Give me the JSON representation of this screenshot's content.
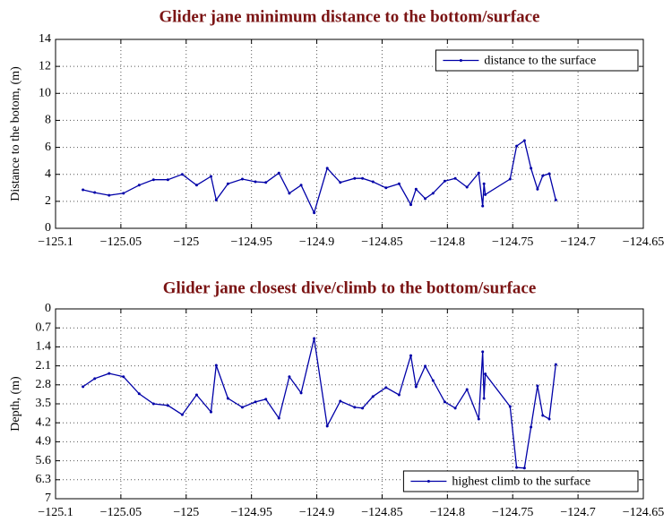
{
  "chart_data": [
    {
      "type": "line",
      "title": "Glider jane minimum distance to the bottom/surface",
      "y_label": "Distance to the botom, (m)",
      "x": [
        -125.079,
        -125.07,
        -125.059,
        -125.048,
        -125.036,
        -125.025,
        -125.014,
        -125.003,
        -124.992,
        -124.981,
        -124.977,
        -124.968,
        -124.957,
        -124.947,
        -124.939,
        -124.929,
        -124.921,
        -124.912,
        -124.902,
        -124.892,
        -124.882,
        -124.871,
        -124.865,
        -124.857,
        -124.847,
        -124.837,
        -124.828,
        -124.824,
        -124.817,
        -124.811,
        -124.802,
        -124.794,
        -124.785,
        -124.776,
        -124.773,
        -124.772,
        -124.771,
        -124.752,
        -124.747,
        -124.741,
        -124.736,
        -124.731,
        -124.727,
        -124.722,
        -124.717
      ],
      "series": [
        {
          "name": "distance to the surface",
          "color": "#0000a8",
          "values": [
            2.85,
            2.65,
            2.45,
            2.6,
            3.2,
            3.6,
            3.6,
            4.0,
            3.2,
            3.85,
            2.1,
            3.3,
            3.65,
            3.45,
            3.4,
            4.1,
            2.6,
            3.2,
            1.15,
            4.45,
            3.4,
            3.7,
            3.7,
            3.45,
            3.0,
            3.3,
            1.75,
            2.9,
            2.2,
            2.6,
            3.5,
            3.7,
            3.05,
            4.1,
            1.65,
            3.3,
            2.5,
            3.65,
            6.1,
            6.5,
            4.45,
            2.9,
            3.9,
            4.05,
            2.1
          ]
        }
      ],
      "xlim": [
        -125.1,
        -124.65
      ],
      "xticks": [
        {
          "value": -125.1,
          "label": "−125.1"
        },
        {
          "value": -125.05,
          "label": "−125.05"
        },
        {
          "value": -125,
          "label": "−125"
        },
        {
          "value": -124.95,
          "label": "−124.95"
        },
        {
          "value": -124.9,
          "label": "−124.9"
        },
        {
          "value": -124.85,
          "label": "−124.85"
        },
        {
          "value": -124.8,
          "label": "−124.8"
        },
        {
          "value": -124.75,
          "label": "−124.75"
        },
        {
          "value": -124.7,
          "label": "−124.7"
        },
        {
          "value": -124.65,
          "label": "−124.65"
        }
      ],
      "ylim": [
        0,
        14
      ],
      "yticks": [
        0,
        2,
        4,
        6,
        8,
        10,
        12,
        14
      ],
      "grid": true,
      "legend": "upper right"
    },
    {
      "type": "line",
      "title": "Glider jane closest dive/climb to the bottom/surface",
      "y_label": "Depth, (m)",
      "x": [
        -125.079,
        -125.07,
        -125.059,
        -125.048,
        -125.036,
        -125.025,
        -125.014,
        -125.003,
        -124.992,
        -124.981,
        -124.977,
        -124.968,
        -124.957,
        -124.947,
        -124.939,
        -124.929,
        -124.921,
        -124.912,
        -124.902,
        -124.892,
        -124.882,
        -124.871,
        -124.865,
        -124.857,
        -124.847,
        -124.837,
        -124.828,
        -124.824,
        -124.817,
        -124.811,
        -124.802,
        -124.794,
        -124.785,
        -124.776,
        -124.773,
        -124.772,
        -124.771,
        -124.752,
        -124.747,
        -124.741,
        -124.736,
        -124.731,
        -124.727,
        -124.722,
        -124.717
      ],
      "series": [
        {
          "name": "highest climb to the surface",
          "color": "#0000a8",
          "values": [
            2.87,
            2.57,
            2.38,
            2.5,
            3.13,
            3.5,
            3.56,
            3.9,
            3.17,
            3.8,
            2.08,
            3.3,
            3.63,
            3.43,
            3.33,
            4.03,
            2.5,
            3.1,
            1.09,
            4.32,
            3.4,
            3.63,
            3.66,
            3.23,
            2.9,
            3.17,
            1.72,
            2.87,
            2.11,
            2.64,
            3.43,
            3.66,
            2.97,
            4.06,
            1.58,
            3.3,
            2.4,
            3.6,
            5.85,
            5.87,
            4.36,
            2.84,
            3.93,
            4.06,
            2.05
          ]
        }
      ],
      "xlim": [
        -125.1,
        -124.65
      ],
      "xticks": [
        {
          "value": -125.1,
          "label": "−125.1"
        },
        {
          "value": -125.05,
          "label": "−125.05"
        },
        {
          "value": -125,
          "label": "−125"
        },
        {
          "value": -124.95,
          "label": "−124.95"
        },
        {
          "value": -124.9,
          "label": "−124.9"
        },
        {
          "value": -124.85,
          "label": "−124.85"
        },
        {
          "value": -124.8,
          "label": "−124.8"
        },
        {
          "value": -124.75,
          "label": "−124.75"
        },
        {
          "value": -124.7,
          "label": "−124.7"
        },
        {
          "value": -124.65,
          "label": "−124.65"
        }
      ],
      "ylim": [
        7,
        0
      ],
      "yticks": [
        0,
        0.7,
        1.4,
        2.1,
        2.8,
        3.5,
        4.2,
        4.9,
        5.6,
        6.3,
        7
      ],
      "grid": true,
      "legend": "lower right"
    }
  ]
}
